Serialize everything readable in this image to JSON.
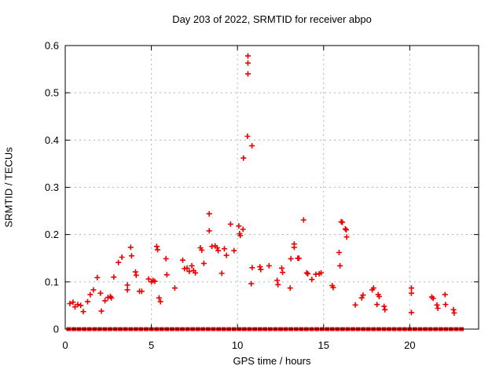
{
  "title": "Day 203 of 2022, SRMTID for receiver abpo",
  "chart_data": {
    "type": "scatter",
    "title": "Day 203 of 2022, SRMTID for receiver abpo",
    "xlabel": "GPS time / hours",
    "ylabel": "SRMTID / TECUs",
    "xlim": [
      0,
      24
    ],
    "ylim": [
      0,
      0.6
    ],
    "xticks": [
      0,
      5,
      10,
      15,
      20
    ],
    "x_tick_labels": [
      "0",
      "5",
      "10",
      "15",
      "20"
    ],
    "yticks": [
      0,
      0.1,
      0.2,
      0.3,
      0.4,
      0.5,
      0.6
    ],
    "y_tick_labels": [
      "0",
      "0.1",
      "0.2",
      "0.3",
      "0.4",
      "0.5",
      "0.6"
    ],
    "grid": true,
    "legend": "none",
    "marker": "plus",
    "marker_color": "#ee0000",
    "series": [
      {
        "name": "srmtid-points",
        "points": [
          [
            0.27,
            0.054
          ],
          [
            0.45,
            0.057
          ],
          [
            0.57,
            0.047
          ],
          [
            0.73,
            0.052
          ],
          [
            0.9,
            0.05
          ],
          [
            1.05,
            0.037
          ],
          [
            1.3,
            0.058
          ],
          [
            1.45,
            0.073
          ],
          [
            1.64,
            0.083
          ],
          [
            1.86,
            0.109
          ],
          [
            2.05,
            0.076
          ],
          [
            2.1,
            0.038
          ],
          [
            2.31,
            0.06
          ],
          [
            2.48,
            0.067
          ],
          [
            2.62,
            0.069
          ],
          [
            2.68,
            0.066
          ],
          [
            2.82,
            0.11
          ],
          [
            3.09,
            0.141
          ],
          [
            3.29,
            0.152
          ],
          [
            3.61,
            0.093
          ],
          [
            3.61,
            0.083
          ],
          [
            3.8,
            0.173
          ],
          [
            3.85,
            0.155
          ],
          [
            4.08,
            0.121
          ],
          [
            4.12,
            0.114
          ],
          [
            4.31,
            0.08
          ],
          [
            4.44,
            0.08
          ],
          [
            4.84,
            0.106
          ],
          [
            5.0,
            0.1
          ],
          [
            5.1,
            0.103
          ],
          [
            5.2,
            0.101
          ],
          [
            5.31,
            0.175
          ],
          [
            5.36,
            0.168
          ],
          [
            5.45,
            0.066
          ],
          [
            5.53,
            0.058
          ],
          [
            5.85,
            0.149
          ],
          [
            5.9,
            0.115
          ],
          [
            6.36,
            0.087
          ],
          [
            6.82,
            0.146
          ],
          [
            6.92,
            0.128
          ],
          [
            7.07,
            0.129
          ],
          [
            7.2,
            0.122
          ],
          [
            7.35,
            0.134
          ],
          [
            7.45,
            0.124
          ],
          [
            7.55,
            0.119
          ],
          [
            7.85,
            0.172
          ],
          [
            7.93,
            0.167
          ],
          [
            8.05,
            0.139
          ],
          [
            8.36,
            0.244
          ],
          [
            8.36,
            0.208
          ],
          [
            8.52,
            0.175
          ],
          [
            8.7,
            0.176
          ],
          [
            8.82,
            0.172
          ],
          [
            8.88,
            0.166
          ],
          [
            9.09,
            0.118
          ],
          [
            9.24,
            0.17
          ],
          [
            9.36,
            0.156
          ],
          [
            9.6,
            0.222
          ],
          [
            9.8,
            0.166
          ],
          [
            10.08,
            0.218
          ],
          [
            10.12,
            0.202
          ],
          [
            10.16,
            0.198
          ],
          [
            10.32,
            0.211
          ],
          [
            10.35,
            0.362
          ],
          [
            10.58,
            0.408
          ],
          [
            10.61,
            0.578
          ],
          [
            10.61,
            0.563
          ],
          [
            10.61,
            0.54
          ],
          [
            10.84,
            0.388
          ],
          [
            10.8,
            0.096
          ],
          [
            10.85,
            0.13
          ],
          [
            11.3,
            0.132
          ],
          [
            11.35,
            0.126
          ],
          [
            11.83,
            0.134
          ],
          [
            12.3,
            0.103
          ],
          [
            12.35,
            0.094
          ],
          [
            12.57,
            0.129
          ],
          [
            12.62,
            0.12
          ],
          [
            13.06,
            0.087
          ],
          [
            13.1,
            0.149
          ],
          [
            13.29,
            0.18
          ],
          [
            13.29,
            0.173
          ],
          [
            13.5,
            0.15
          ],
          [
            13.57,
            0.15
          ],
          [
            13.84,
            0.231
          ],
          [
            14.02,
            0.119
          ],
          [
            14.08,
            0.117
          ],
          [
            14.32,
            0.105
          ],
          [
            14.55,
            0.116
          ],
          [
            14.74,
            0.117
          ],
          [
            14.85,
            0.119
          ],
          [
            15.5,
            0.092
          ],
          [
            15.56,
            0.088
          ],
          [
            15.9,
            0.162
          ],
          [
            15.95,
            0.134
          ],
          [
            16.02,
            0.227
          ],
          [
            16.09,
            0.226
          ],
          [
            16.26,
            0.212
          ],
          [
            16.31,
            0.21
          ],
          [
            16.34,
            0.195
          ],
          [
            16.84,
            0.051
          ],
          [
            17.21,
            0.066
          ],
          [
            17.29,
            0.072
          ],
          [
            17.82,
            0.083
          ],
          [
            17.9,
            0.087
          ],
          [
            18.1,
            0.052
          ],
          [
            18.17,
            0.073
          ],
          [
            18.23,
            0.069
          ],
          [
            18.51,
            0.048
          ],
          [
            18.56,
            0.041
          ],
          [
            20.1,
            0.087
          ],
          [
            20.1,
            0.076
          ],
          [
            20.1,
            0.035
          ],
          [
            21.28,
            0.068
          ],
          [
            21.36,
            0.065
          ],
          [
            21.58,
            0.051
          ],
          [
            21.63,
            0.044
          ],
          [
            22.05,
            0.073
          ],
          [
            22.08,
            0.052
          ],
          [
            22.54,
            0.041
          ],
          [
            22.58,
            0.034
          ]
        ]
      },
      {
        "name": "zero-baseline",
        "y": 0,
        "x": [
          0.2,
          0.5,
          0.8,
          1.1,
          1.4,
          1.7,
          2.0,
          2.3,
          2.6,
          2.9,
          3.2,
          3.5,
          3.8,
          4.1,
          4.4,
          4.7,
          5.0,
          5.3,
          5.6,
          5.9,
          6.2,
          6.5,
          6.8,
          7.1,
          7.4,
          7.7,
          8.0,
          8.3,
          8.6,
          8.9,
          9.2,
          9.5,
          9.8,
          10.1,
          10.4,
          10.7,
          11.0,
          11.3,
          11.6,
          11.9,
          12.2,
          12.5,
          12.8,
          13.1,
          13.4,
          13.7,
          14.0,
          14.3,
          14.6,
          14.9,
          15.2,
          15.5,
          15.8,
          16.1,
          16.4,
          16.7,
          17.0,
          17.3,
          17.6,
          17.9,
          18.2,
          18.5,
          18.8,
          19.1,
          19.4,
          19.7,
          20.0,
          20.3,
          20.6,
          20.9,
          21.2,
          21.5,
          21.8,
          22.1,
          22.4,
          22.7,
          23.0
        ]
      }
    ]
  }
}
